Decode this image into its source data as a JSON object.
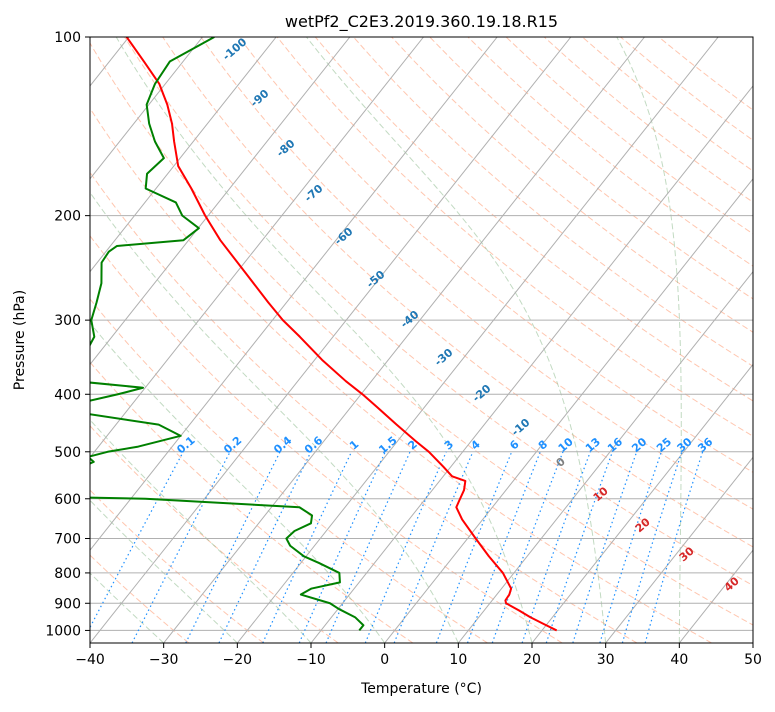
{
  "chart_data": {
    "type": "line",
    "subtype": "skew-t log-p diagram",
    "title": "wetPf2_C2E3.2019.360.19.18.R15",
    "xlabel": "Temperature (°C)",
    "ylabel": "Pressure (hPa)",
    "xlim": [
      -40,
      50
    ],
    "ylim": [
      1050,
      100
    ],
    "y_scale": "log",
    "grid": true,
    "x_ticks": [
      -40,
      -30,
      -20,
      -10,
      0,
      10,
      20,
      30,
      40,
      50
    ],
    "x_tick_labels": [
      "−40",
      "−30",
      "−20",
      "−10",
      "0",
      "10",
      "20",
      "30",
      "40",
      "50"
    ],
    "y_ticks": [
      100,
      200,
      300,
      400,
      500,
      600,
      700,
      800,
      900,
      1000
    ],
    "y_tick_labels": [
      "100",
      "200",
      "300",
      "400",
      "500",
      "600",
      "700",
      "800",
      "900",
      "1000"
    ],
    "colors": {
      "temperature": "#ff0000",
      "dewpoint": "#008000",
      "isotherm": "#b0b0b0",
      "dry_adiabat": "#ffa07a",
      "moist_adiabat": "#8fbc8f",
      "mixing_ratio": "#1e90ff",
      "moist_label": "#1f77b4",
      "dry_label": "#d62728",
      "zero_label": "#808080"
    },
    "series": [
      {
        "name": "",
        "key": "temperature",
        "p": [
          1000,
          975,
          950,
          925,
          900,
          890,
          870,
          850,
          800,
          750,
          700,
          650,
          620,
          600,
          580,
          560,
          550,
          530,
          500,
          480,
          450,
          420,
          400,
          380,
          350,
          320,
          300,
          280,
          250,
          220,
          200,
          180,
          165,
          150,
          140,
          130,
          120,
          110,
          100
        ],
        "t": [
          22,
          19.5,
          17,
          14.7,
          12.2,
          11.8,
          11.7,
          11.3,
          8.5,
          4.8,
          1.1,
          -2.8,
          -4.9,
          -5.3,
          -5.7,
          -6.5,
          -8.8,
          -11,
          -14.6,
          -17.5,
          -21.9,
          -26.5,
          -29.8,
          -33.5,
          -39,
          -44.5,
          -48.6,
          -52.5,
          -58.7,
          -65.7,
          -70.4,
          -75.2,
          -79.4,
          -82.6,
          -84.8,
          -87.5,
          -90.8,
          -95.3,
          -100.3
        ]
      },
      {
        "name": "",
        "key": "dewpoint",
        "p": [
          1000,
          980,
          950,
          920,
          900,
          870,
          850,
          830,
          800,
          770,
          750,
          720,
          700,
          680,
          660,
          640,
          620,
          600,
          590,
          585,
          580,
          575,
          570,
          560,
          550,
          530,
          520,
          510,
          500,
          490,
          470,
          450,
          430,
          420,
          410,
          400,
          390,
          380,
          370,
          350,
          320,
          300,
          280,
          260,
          240,
          230,
          225,
          220,
          210,
          200,
          190,
          180,
          170,
          160,
          150,
          140,
          130,
          120,
          110,
          100
        ],
        "t": [
          -4.8,
          -4.8,
          -6.8,
          -9.9,
          -11.7,
          -16.6,
          -15.8,
          -12.6,
          -13.7,
          -17.5,
          -20.3,
          -23.3,
          -24.6,
          -24.3,
          -22.9,
          -23.6,
          -26.2,
          -48,
          -77,
          -82,
          -85,
          -86,
          -86,
          -86,
          -85,
          -60,
          -59,
          -60.3,
          -58.2,
          -54.6,
          -50,
          -54.2,
          -66,
          -67,
          -66.1,
          -63,
          -60.3,
          -70.3,
          -71.2,
          -71.6,
          -72.4,
          -74.6,
          -75.8,
          -77.2,
          -79.4,
          -79.6,
          -79.1,
          -70.7,
          -69.9,
          -73.5,
          -75.8,
          -81.4,
          -82.8,
          -82.2,
          -85.2,
          -87.9,
          -90.3,
          -91.4,
          -91.8,
          -88.4
        ]
      }
    ],
    "moist_adiabat_labels": [
      "-100",
      "-90",
      "-80",
      "-70",
      "-60",
      "-50",
      "-40",
      "-30",
      "-20",
      "-10",
      "0"
    ],
    "dry_adiabat_labels": [
      "10",
      "20",
      "30",
      "40"
    ],
    "mixing_ratio_labels": [
      "0.1",
      "0.2",
      "0.4",
      "0.6",
      "1",
      "1.5",
      "2",
      "3",
      "4",
      "6",
      "8",
      "10",
      "13",
      "16",
      "20",
      "25",
      "30",
      "36"
    ]
  }
}
